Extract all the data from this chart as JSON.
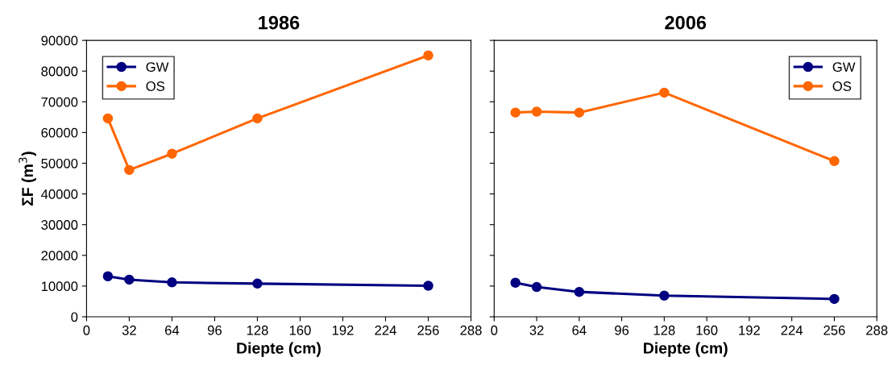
{
  "chart_data": [
    {
      "type": "line",
      "title": "1986",
      "xlabel": "Diepte (cm)",
      "ylabel": "ΣF (m$^{3}$)",
      "x": [
        16,
        32,
        64,
        128,
        256
      ],
      "xlim": [
        0,
        288
      ],
      "xticks": [
        0,
        32,
        64,
        96,
        128,
        160,
        192,
        224,
        256,
        288
      ],
      "ylim": [
        0,
        90000
      ],
      "yticks": [
        0,
        10000,
        20000,
        30000,
        40000,
        50000,
        60000,
        70000,
        80000,
        90000
      ],
      "marker": "circle",
      "grid": false,
      "legend": "top left",
      "series": [
        {
          "name": "GW",
          "color": "#000080",
          "values": [
            13200,
            12100,
            11200,
            10800,
            10100
          ]
        },
        {
          "name": "OS",
          "color": "#ff6600",
          "values": [
            64600,
            47800,
            53100,
            64600,
            85100
          ]
        }
      ]
    },
    {
      "type": "line",
      "title": "2006",
      "xlabel": "Diepte (cm)",
      "x": [
        16,
        32,
        64,
        128,
        256
      ],
      "xlim": [
        0,
        288
      ],
      "xticks": [
        0,
        32,
        64,
        96,
        128,
        160,
        192,
        224,
        256,
        288
      ],
      "ylim": [
        0,
        90000
      ],
      "yticks": [
        0,
        10000,
        20000,
        30000,
        40000,
        50000,
        60000,
        70000,
        80000,
        90000
      ],
      "marker": "circle",
      "grid": false,
      "legend": "top right",
      "tick_labels": "x",
      "series": [
        {
          "name": "GW",
          "color": "#000080",
          "values": [
            11100,
            9700,
            8100,
            6900,
            5800
          ]
        },
        {
          "name": "OS",
          "color": "#ff6600",
          "values": [
            66500,
            66800,
            66500,
            73000,
            50700
          ]
        }
      ]
    }
  ]
}
